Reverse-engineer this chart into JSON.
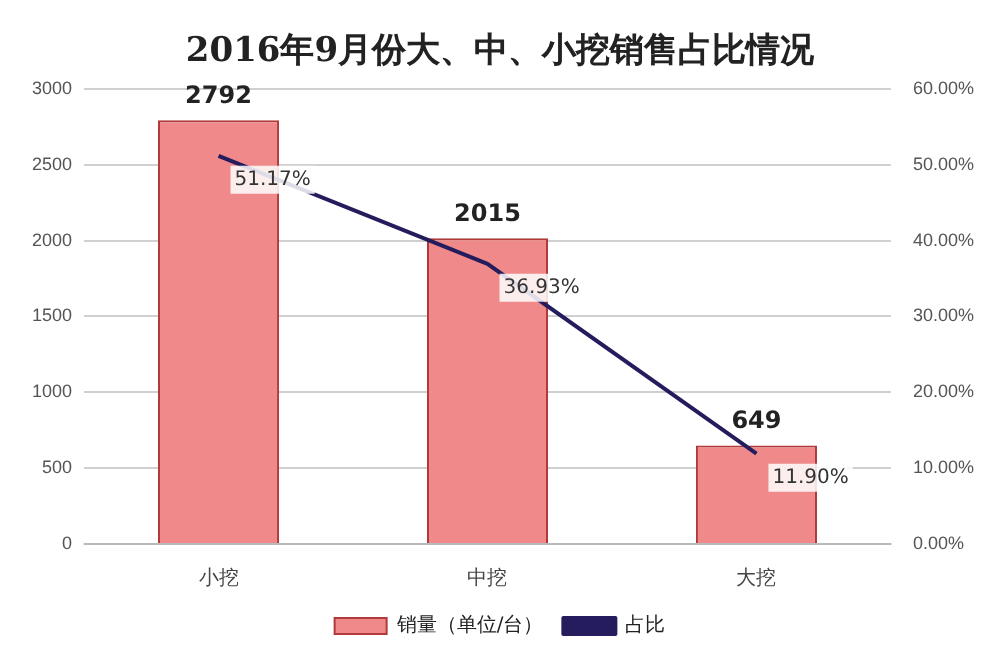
{
  "chart_data": {
    "type": "bar",
    "title": "2016年9月份大、中、小挖销售占比情况",
    "categories": [
      "小挖",
      "中挖",
      "大挖"
    ],
    "series": [
      {
        "name": "销量（单位/台）",
        "color": "#f08a8a",
        "values": [
          2792,
          2015,
          649
        ],
        "value_labels": [
          "2792",
          "2015",
          "649"
        ]
      },
      {
        "name": "占比",
        "type": "line",
        "axis": "y2",
        "color": "#241c5c",
        "values": [
          51.17,
          36.93,
          11.9
        ],
        "value_labels": [
          "51.17%",
          "36.93%",
          "11.90%"
        ]
      }
    ],
    "ylim": [
      0,
      3000
    ],
    "yticks": [
      0,
      500,
      1000,
      1500,
      2000,
      2500,
      3000
    ],
    "y2lim": [
      0,
      60
    ],
    "y2ticks": [
      {
        "value": 0,
        "label": "0.00%"
      },
      {
        "value": 10,
        "label": "10.00%"
      },
      {
        "value": 20,
        "label": "20.00%"
      },
      {
        "value": 30,
        "label": "30.00%"
      },
      {
        "value": 40,
        "label": "40.00%"
      },
      {
        "value": 50,
        "label": "50.00%"
      },
      {
        "value": 60,
        "label": "60.00%"
      }
    ],
    "grid": "y",
    "legend": "bottom",
    "marker": "none",
    "line_style": "solid"
  }
}
